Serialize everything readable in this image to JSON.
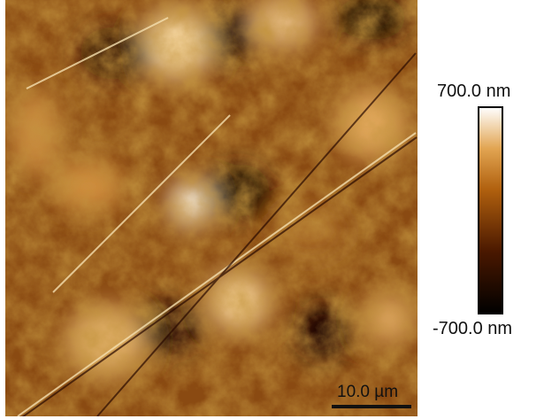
{
  "image": {
    "scale_bar": {
      "label": "10.0 µm"
    }
  },
  "colorbar": {
    "max_label": "700.0 nm",
    "min_label": "-700.0 nm"
  }
}
